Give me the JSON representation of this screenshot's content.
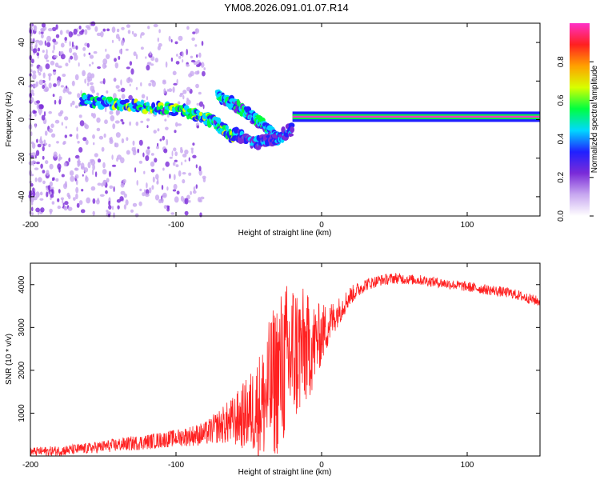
{
  "title": "YM08.2026.091.01.07.R14",
  "chart_data": [
    {
      "type": "heatmap",
      "name": "spectrogram",
      "xlabel": "Height of straight line (km)",
      "ylabel": "Frequency (Hz)",
      "xlim": [
        -200,
        150
      ],
      "ylim": [
        -50,
        50
      ],
      "xticks": [
        -200,
        -100,
        0,
        100
      ],
      "xtick_labels": [
        "-200",
        "-100",
        "0",
        "100"
      ],
      "yticks": [
        -40,
        -20,
        0,
        20,
        40
      ],
      "ytick_labels": [
        "-40",
        "-20",
        "0",
        "20",
        "40"
      ],
      "colorbar": {
        "label": "Normalized spectral amplitude",
        "range": [
          0.0,
          1.0
        ],
        "ticks": [
          0.0,
          0.2,
          0.4,
          0.6,
          0.8
        ],
        "tick_labels": [
          "0.0",
          "0.2",
          "0.4",
          "0.6",
          "0.8"
        ],
        "colormap": [
          "#ffffff",
          "#c8a8f0",
          "#7a2bd8",
          "#2020ff",
          "#00d8ff",
          "#00ff40",
          "#d8ff00",
          "#ffa000",
          "#ff2020",
          "#ff30c8"
        ]
      },
      "features": [
        {
          "kind": "line",
          "x": [
            -165,
            -140,
            -115,
            -95,
            -80,
            -70,
            -60
          ],
          "y": [
            10,
            8,
            6,
            5,
            1,
            -3,
            -10
          ],
          "amp": 0.45
        },
        {
          "kind": "line",
          "x": [
            -72,
            -60,
            -50,
            -40,
            -30
          ],
          "y": [
            13,
            8,
            3,
            -3,
            -10
          ],
          "amp": 0.4
        },
        {
          "kind": "line",
          "x": [
            -60,
            -45,
            -32,
            -20
          ],
          "y": [
            -7,
            -12,
            -10,
            -5
          ],
          "amp": 0.3
        },
        {
          "kind": "band",
          "x": [
            -20,
            150
          ],
          "y": [
            1,
            2
          ],
          "amp": 0.95
        }
      ]
    },
    {
      "type": "line",
      "name": "snr",
      "xlabel": "Height of straight line (km)",
      "ylabel": "SNR (10 * v/v)",
      "xlim": [
        -200,
        150
      ],
      "ylim": [
        0,
        4500
      ],
      "xticks": [
        -200,
        -100,
        0,
        100
      ],
      "xtick_labels": [
        "-200",
        "-100",
        "0",
        "100"
      ],
      "yticks": [
        1000,
        2000,
        3000,
        4000
      ],
      "ytick_labels": [
        "1000",
        "2000",
        "3000",
        "4000"
      ],
      "color": "#ff2020",
      "series": [
        {
          "name": "SNR",
          "x": [
            -200,
            -180,
            -160,
            -140,
            -120,
            -100,
            -80,
            -70,
            -60,
            -50,
            -40,
            -35,
            -30,
            -25,
            -20,
            -15,
            -10,
            -5,
            0,
            10,
            20,
            30,
            40,
            50,
            60,
            70,
            80,
            90,
            100,
            110,
            120,
            130,
            140,
            150
          ],
          "y": [
            100,
            120,
            180,
            260,
            330,
            420,
            520,
            700,
            820,
            1000,
            1250,
            1600,
            1900,
            2150,
            2400,
            2450,
            2500,
            2600,
            2850,
            3300,
            3750,
            4000,
            4100,
            4150,
            4120,
            4100,
            4050,
            4000,
            3950,
            3900,
            3850,
            3800,
            3700,
            3600
          ],
          "spread": [
            100,
            120,
            130,
            160,
            180,
            200,
            280,
            400,
            600,
            900,
            1400,
            1700,
            1900,
            1900,
            1800,
            1600,
            1300,
            1000,
            700,
            350,
            220,
            150,
            130,
            130,
            120,
            120,
            120,
            120,
            120,
            120,
            120,
            120,
            120,
            120
          ]
        }
      ]
    }
  ]
}
